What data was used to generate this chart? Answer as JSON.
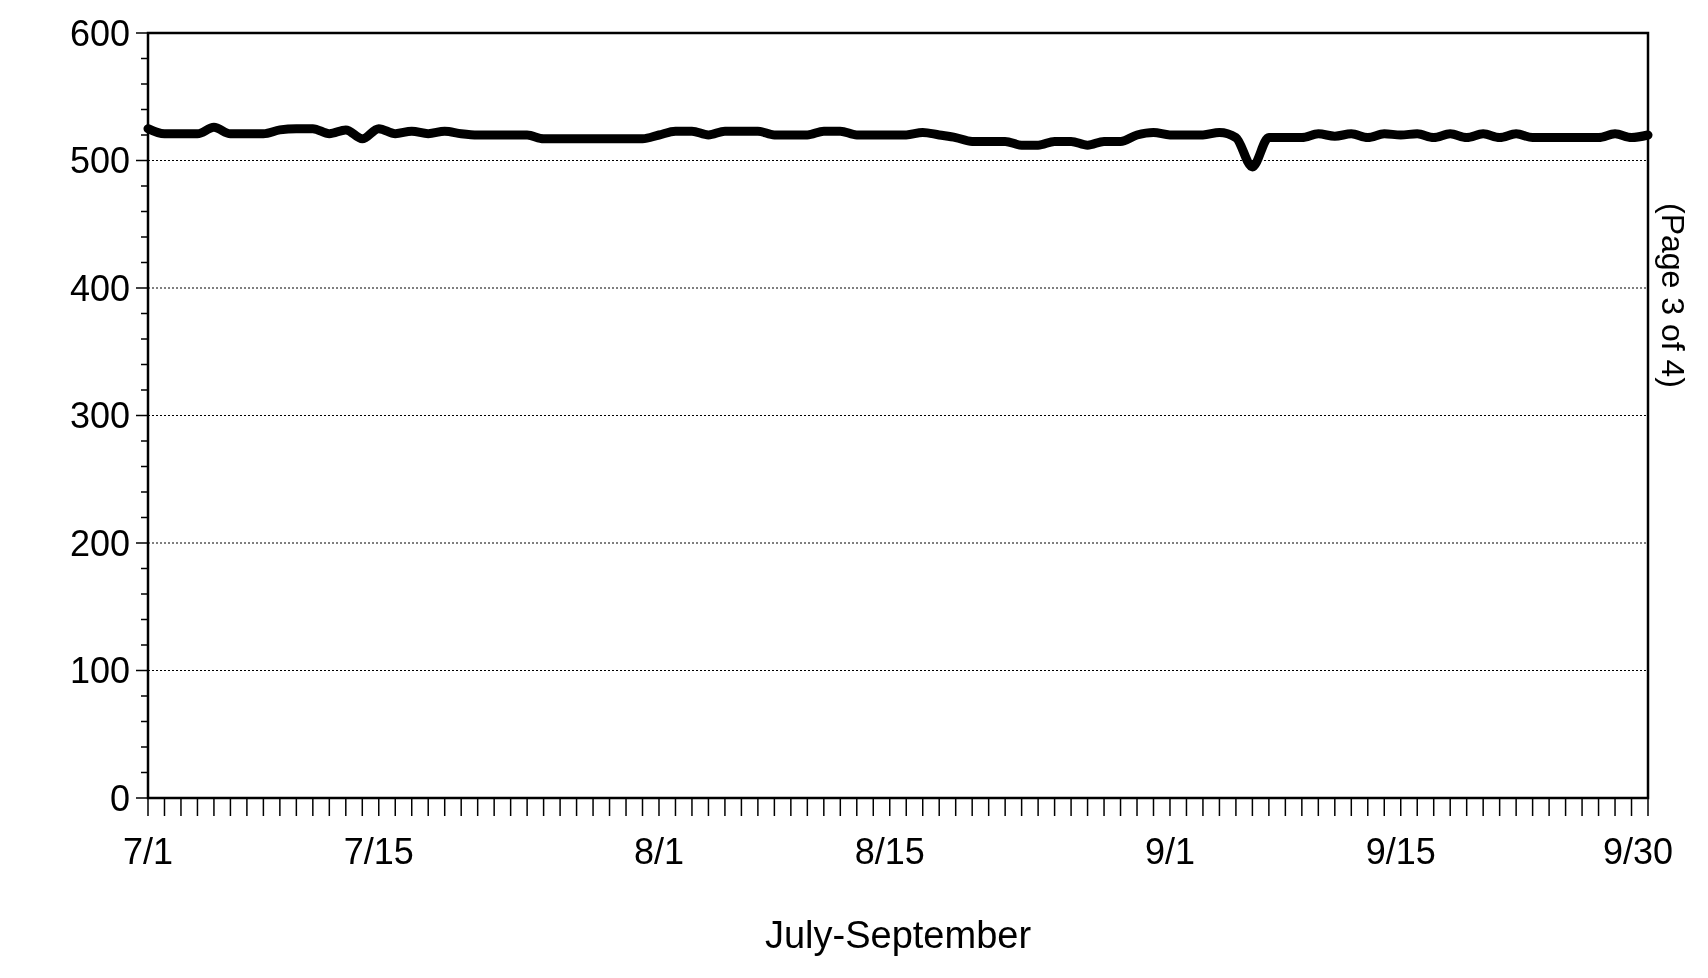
{
  "chart_data": {
    "type": "line",
    "xlabel": "July-September",
    "categories": [
      "7/1",
      null,
      null,
      null,
      null,
      null,
      null,
      null,
      null,
      null,
      null,
      null,
      null,
      null,
      "7/15",
      null,
      null,
      null,
      null,
      null,
      null,
      null,
      null,
      null,
      null,
      null,
      null,
      null,
      null,
      null,
      null,
      "8/1",
      null,
      null,
      null,
      null,
      null,
      null,
      null,
      null,
      null,
      null,
      null,
      null,
      null,
      "8/15",
      null,
      null,
      null,
      null,
      null,
      null,
      null,
      null,
      null,
      null,
      null,
      null,
      null,
      null,
      null,
      null,
      "9/1",
      null,
      null,
      null,
      null,
      null,
      null,
      null,
      null,
      null,
      null,
      null,
      null,
      null,
      "9/15",
      null,
      null,
      null,
      null,
      null,
      null,
      null,
      null,
      null,
      null,
      null,
      null,
      null,
      null,
      "9/30"
    ],
    "series": [
      {
        "color": "#000000",
        "values": [
          525,
          521,
          521,
          521,
          526,
          521,
          521,
          521,
          524,
          525,
          525,
          521,
          524,
          517,
          525,
          521,
          523,
          521,
          523,
          521,
          520,
          520,
          520,
          520,
          517,
          517,
          517,
          517,
          517,
          517,
          517,
          520,
          523,
          523,
          520,
          523,
          523,
          523,
          520,
          520,
          520,
          523,
          523,
          520,
          520,
          520,
          520,
          522,
          520,
          518,
          515,
          515,
          515,
          512,
          512,
          515,
          515,
          512,
          515,
          515,
          520,
          522,
          520,
          520,
          520,
          522,
          518,
          495,
          518,
          518,
          518,
          521,
          519,
          521,
          518,
          521,
          520,
          521,
          518,
          521,
          518,
          521,
          518,
          521,
          518,
          518,
          518,
          518,
          518,
          521,
          518,
          520
        ]
      }
    ],
    "ylim": [
      0,
      600
    ],
    "yticks": [
      0,
      {
        "value": 20,
        "label": null
      },
      {
        "value": 40,
        "label": null
      },
      {
        "value": 60,
        "label": null
      },
      {
        "value": 80,
        "label": null
      },
      100,
      {
        "value": 120,
        "label": null
      },
      {
        "value": 140,
        "label": null
      },
      {
        "value": 160,
        "label": null
      },
      {
        "value": 180,
        "label": null
      },
      200,
      {
        "value": 220,
        "label": null
      },
      {
        "value": 240,
        "label": null
      },
      {
        "value": 260,
        "label": null
      },
      {
        "value": 280,
        "label": null
      },
      300,
      {
        "value": 320,
        "label": null
      },
      {
        "value": 340,
        "label": null
      },
      {
        "value": 360,
        "label": null
      },
      {
        "value": 380,
        "label": null
      },
      400,
      {
        "value": 420,
        "label": null
      },
      {
        "value": 440,
        "label": null
      },
      {
        "value": 460,
        "label": null
      },
      {
        "value": 480,
        "label": null
      },
      500,
      {
        "value": 520,
        "label": null
      },
      {
        "value": 540,
        "label": null
      },
      {
        "value": 560,
        "label": null
      },
      {
        "value": 580,
        "label": null
      },
      600
    ],
    "grid": "y",
    "marker": "none",
    "line_style": "solid",
    "annotations": [
      "(Page 3 of 4)"
    ]
  }
}
